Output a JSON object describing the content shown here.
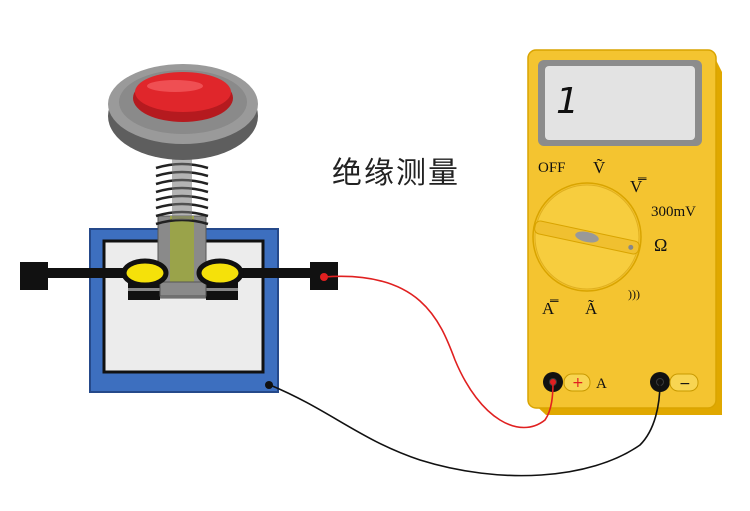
{
  "caption": "绝缘测量",
  "multimeter": {
    "display": "1",
    "dial_labels": {
      "off": "OFF",
      "ac_volts": "Ṽ",
      "dc_volts": "V̿",
      "millivolts": "300mV",
      "ohms": "Ω",
      "continuity": ")))",
      "dc_amps": "A̿",
      "ac_amps": "Ã"
    },
    "jacks": {
      "positive_symbol": "+",
      "positive_label": "A",
      "negative_symbol": "−"
    }
  },
  "colors": {
    "meter_body": "#f4c430",
    "meter_edge": "#e0a800",
    "base_blue": "#3d6fbf",
    "button_red": "#e0262b",
    "wire_red": "#e02020",
    "wire_black": "#111111",
    "terminal_yellow": "#f5e10a"
  }
}
